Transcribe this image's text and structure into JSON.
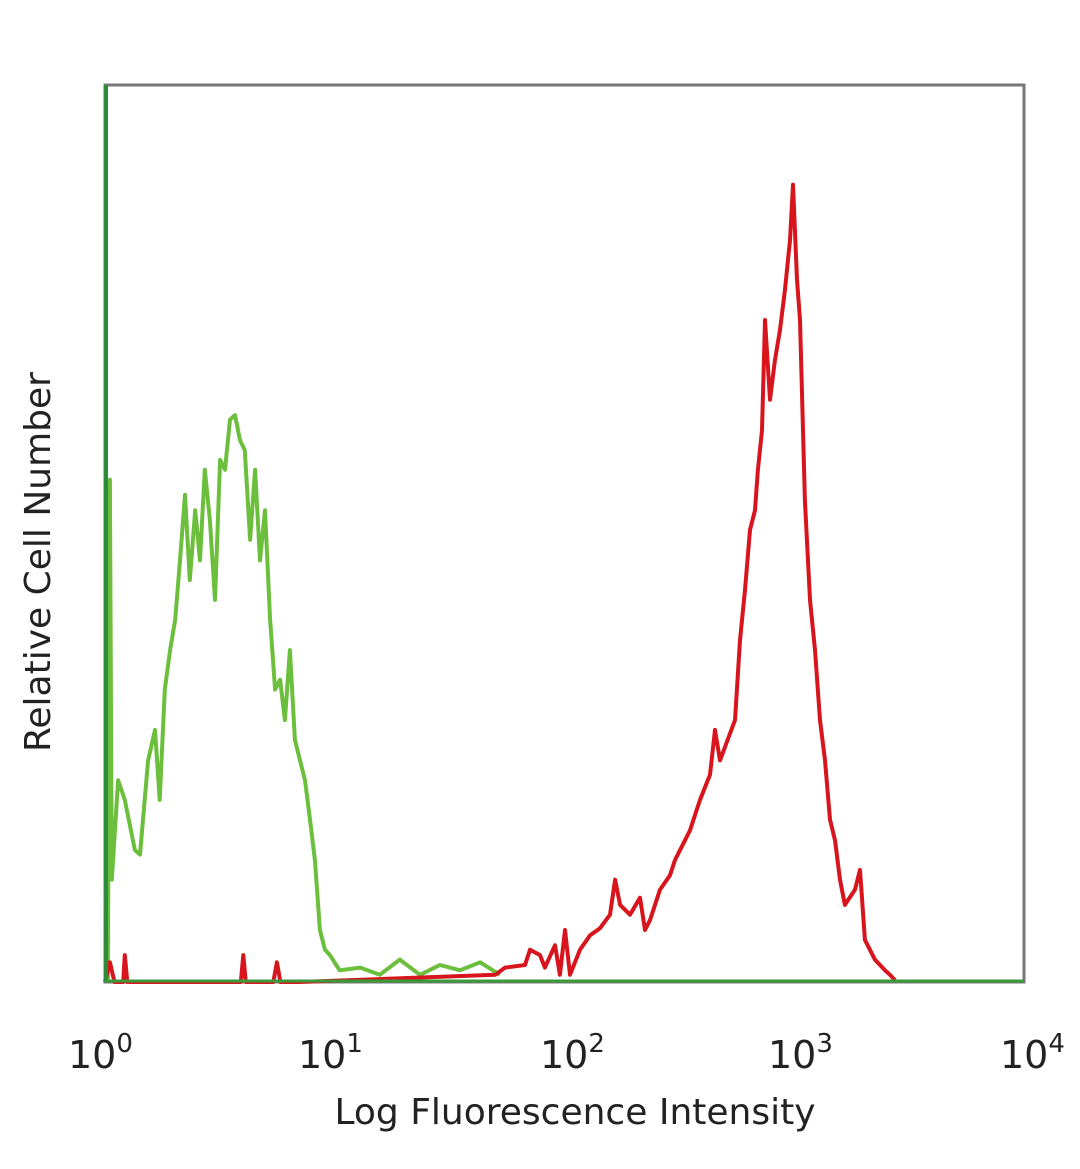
{
  "chart_data": {
    "type": "line",
    "title": "",
    "xlabel": "Log Fluorescence Intensity",
    "ylabel": "Relative Cell Number",
    "x_scale": "log",
    "xlim": [
      1,
      10000
    ],
    "ylim": [
      0,
      100
    ],
    "grid": false,
    "legend": "none",
    "x_ticks": [
      {
        "base": "10",
        "exp": "0"
      },
      {
        "base": "10",
        "exp": "1"
      },
      {
        "base": "10",
        "exp": "2"
      },
      {
        "base": "10",
        "exp": "3"
      },
      {
        "base": "10",
        "exp": "4"
      }
    ],
    "x_tick_values": [
      1,
      10,
      100,
      1000,
      10000
    ],
    "colors": {
      "frame": "#777777",
      "left_axis": "#2e8b3a",
      "bottom_axis": "#3a9a3a"
    },
    "series": [
      {
        "color": "#6cbf3c",
        "x": [
          1.03,
          1.05,
          1.07,
          1.14,
          1.22,
          1.35,
          1.42,
          1.54,
          1.65,
          1.73,
          1.82,
          1.92,
          2.02,
          2.12,
          2.23,
          2.34,
          2.47,
          2.59,
          2.72,
          2.86,
          3.01,
          3.17,
          3.33,
          3.5,
          3.68,
          3.87,
          4.06,
          4.28,
          4.5,
          4.73,
          4.97,
          5.23,
          5.5,
          5.78,
          6.07,
          6.38,
          6.71,
          7.06,
          7.42,
          7.8,
          8.2,
          8.62,
          9.07,
          9.53,
          10.5,
          12.9,
          15.7,
          19.2,
          23.5,
          28.7,
          35.1,
          42.9,
          52.4
        ],
        "y": [
          0.2,
          56.0,
          11.4,
          22.5,
          20.3,
          14.7,
          14.2,
          24.7,
          28.1,
          20.3,
          32.6,
          37.0,
          40.4,
          47.0,
          54.3,
          44.8,
          52.6,
          47.0,
          57.1,
          51.5,
          42.6,
          58.2,
          57.1,
          62.7,
          63.2,
          60.4,
          59.3,
          49.3,
          57.1,
          47.0,
          52.6,
          40.4,
          32.6,
          33.7,
          29.2,
          37.0,
          27.0,
          24.7,
          22.5,
          18.1,
          13.6,
          5.8,
          3.6,
          3.0,
          1.3,
          1.6,
          0.8,
          2.5,
          0.8,
          1.9,
          1.3,
          2.2,
          0.8
        ]
      },
      {
        "color": "#d8141c",
        "x": [
          1,
          1.05,
          1.1,
          1.2,
          1.22,
          1.25,
          3.9,
          4.0,
          4.1,
          5.4,
          5.6,
          5.8,
          7,
          50,
          55.1,
          67.3,
          70.8,
          78.2,
          82.2,
          90.9,
          95.5,
          100.5,
          105.7,
          116.8,
          129.1,
          142.8,
          157.8,
          166.0,
          174.5,
          192.8,
          213.2,
          224.1,
          235.6,
          260.4,
          287.9,
          302.7,
          334.6,
          351.8,
          388.8,
          429.8,
          451.9,
          475.1,
          552.4,
          580.7,
          610.5,
          641.8,
          674.8,
          695.0,
          724.0,
          746,
          784,
          824,
          867,
          911,
          958,
          988,
          1028,
          1059,
          1113,
          1171,
          1231,
          1294,
          1361,
          1431,
          1504,
          1581,
          1662,
          1838,
          1932,
          2031,
          2245,
          2483,
          2610,
          2744
        ],
        "y": [
          0,
          2.2,
          0,
          0,
          3.0,
          0,
          0,
          3.0,
          0,
          0,
          2.2,
          0,
          0,
          0.8,
          1.6,
          1.9,
          3.6,
          3.0,
          1.6,
          4.1,
          0.8,
          5.8,
          0.8,
          3.6,
          5.2,
          6.0,
          7.5,
          11.4,
          8.6,
          7.5,
          9.4,
          5.8,
          6.9,
          10.3,
          11.9,
          13.6,
          15.8,
          16.9,
          20.3,
          23.1,
          28.1,
          24.7,
          29.2,
          38.1,
          43.7,
          50.4,
          52.6,
          57.1,
          61.5,
          73.8,
          64.9,
          69.3,
          72.7,
          77.1,
          82.7,
          88.9,
          78.3,
          73.8,
          53.7,
          42.6,
          37.0,
          29.2,
          24.7,
          18.1,
          15.8,
          11.4,
          8.6,
          10.3,
          12.5,
          4.7,
          2.5,
          1.3,
          0.8,
          0.2
        ]
      }
    ]
  }
}
